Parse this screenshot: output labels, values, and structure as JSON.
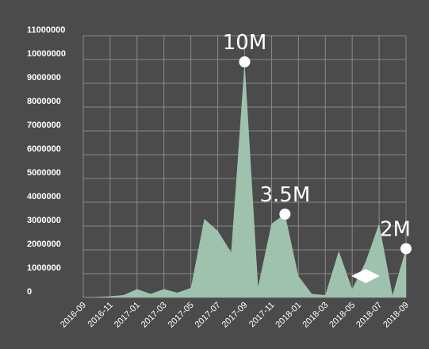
{
  "chart_data": {
    "type": "area",
    "title": "",
    "xlabel": "",
    "ylabel": "",
    "ylim": [
      0,
      11000000
    ],
    "y_ticks": [
      0,
      1000000,
      2000000,
      3000000,
      4000000,
      5000000,
      6000000,
      7000000,
      8000000,
      9000000,
      10000000,
      11000000
    ],
    "y_tick_labels": [
      "0",
      "1000000",
      "2000000",
      "3000000",
      "4000000",
      "5000000",
      "6000000",
      "7000000",
      "8000000",
      "9000000",
      "10000000",
      "11000000"
    ],
    "x_tick_labels": [
      "2016-09",
      "2016-11",
      "2017-01",
      "2017-03",
      "2017-05",
      "2017-07",
      "2017-09",
      "2017-11",
      "2018-01",
      "2018-03",
      "2018-05",
      "2018-07",
      "2018-09"
    ],
    "grid": true,
    "colors": {
      "background": "#4b4b4b",
      "area": "#9ec2ad",
      "grid": "#8a8a8a",
      "text": "#ffffff",
      "marker": "#ffffff"
    },
    "x": [
      "2016-09",
      "2016-10",
      "2016-11",
      "2016-12",
      "2017-01",
      "2017-02",
      "2017-03",
      "2017-04",
      "2017-05",
      "2017-06",
      "2017-07",
      "2017-08",
      "2017-09",
      "2017-10",
      "2017-11",
      "2017-12",
      "2018-01",
      "2018-02",
      "2018-03",
      "2018-04",
      "2018-05",
      "2018-06",
      "2018-07",
      "2018-08",
      "2018-09"
    ],
    "series": [
      {
        "values": [
          10000,
          20000,
          50000,
          100000,
          350000,
          150000,
          350000,
          200000,
          400000,
          3300000,
          2800000,
          1900000,
          9900000,
          450000,
          3100000,
          3500000,
          900000,
          150000,
          100000,
          1950000,
          350000,
          1500000,
          3100000,
          100000,
          2050000
        ]
      }
    ],
    "annotations": [
      {
        "label": "10M",
        "x": "2017-09",
        "y": 9900000
      },
      {
        "label": "3.5M",
        "x": "2017-12",
        "y": 3500000
      },
      {
        "label": "2M",
        "x": "2018-09",
        "y": 2050000
      }
    ],
    "range_marker": {
      "from": "2018-05",
      "to": "2018-07",
      "y": 900000
    }
  }
}
